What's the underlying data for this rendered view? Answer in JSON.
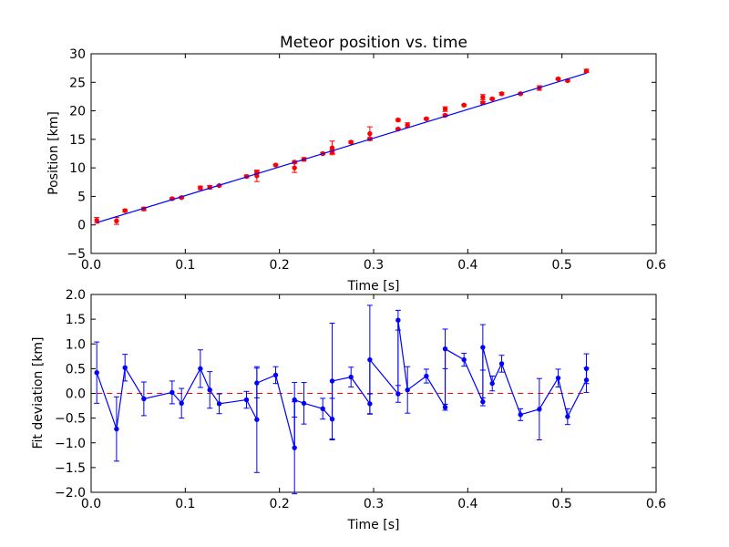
{
  "colors": {
    "points": "#ff0000",
    "fit": "#0000ff",
    "zero_line": "#ff0000",
    "background": "#ffffff"
  },
  "chart_data": [
    {
      "type": "scatter",
      "title": "Meteor position vs. time",
      "xlabel": "Time [s]",
      "ylabel": "Position [km]",
      "xlim": [
        0.0,
        0.6
      ],
      "ylim": [
        -5,
        30
      ],
      "xticks": [
        "0.0",
        "0.1",
        "0.2",
        "0.3",
        "0.4",
        "0.5",
        "0.6"
      ],
      "yticks": [
        "−5",
        "0",
        "5",
        "10",
        "15",
        "20",
        "25",
        "30"
      ],
      "grid": false,
      "series": [
        {
          "kind": "errorbar-points",
          "color": "#ff0000",
          "points": [
            {
              "x": 0.006,
              "y": 0.8,
              "err": 0.5
            },
            {
              "x": 0.027,
              "y": 0.7,
              "err": 0.6
            },
            {
              "x": 0.036,
              "y": 2.5,
              "err": 0.2
            },
            {
              "x": 0.056,
              "y": 2.8,
              "err": 0.3
            },
            {
              "x": 0.086,
              "y": 4.6,
              "err": 0.15
            },
            {
              "x": 0.096,
              "y": 4.8,
              "err": 0.15
            },
            {
              "x": 0.116,
              "y": 6.5,
              "err": 0.3
            },
            {
              "x": 0.126,
              "y": 6.6,
              "err": 0.3
            },
            {
              "x": 0.136,
              "y": 6.9,
              "err": 0.1
            },
            {
              "x": 0.165,
              "y": 8.5,
              "err": 0.25
            },
            {
              "x": 0.176,
              "y": 8.6,
              "err": 1.0
            },
            {
              "x": 0.176,
              "y": 9.2,
              "err": 0.2
            },
            {
              "x": 0.196,
              "y": 10.5,
              "err": 0.15
            },
            {
              "x": 0.216,
              "y": 10.0,
              "err": 0.8
            },
            {
              "x": 0.216,
              "y": 11.0,
              "err": 0.2
            },
            {
              "x": 0.226,
              "y": 11.5,
              "err": 0.3
            },
            {
              "x": 0.246,
              "y": 12.5,
              "err": 0.2
            },
            {
              "x": 0.256,
              "y": 12.8,
              "err": 0.3
            },
            {
              "x": 0.256,
              "y": 13.5,
              "err": 1.2
            },
            {
              "x": 0.276,
              "y": 14.5,
              "err": 0.2
            },
            {
              "x": 0.296,
              "y": 15.1,
              "err": 0.2
            },
            {
              "x": 0.296,
              "y": 16.0,
              "err": 1.2
            },
            {
              "x": 0.326,
              "y": 16.8,
              "err": 0.15
            },
            {
              "x": 0.326,
              "y": 18.4,
              "err": 0.2
            },
            {
              "x": 0.336,
              "y": 17.5,
              "err": 0.4
            },
            {
              "x": 0.356,
              "y": 18.6,
              "err": 0.15
            },
            {
              "x": 0.376,
              "y": 19.2,
              "err": 0.15
            },
            {
              "x": 0.376,
              "y": 20.3,
              "err": 0.4
            },
            {
              "x": 0.396,
              "y": 21.0,
              "err": 0.15
            },
            {
              "x": 0.416,
              "y": 21.4,
              "err": 0.2
            },
            {
              "x": 0.416,
              "y": 22.4,
              "err": 0.45
            },
            {
              "x": 0.426,
              "y": 22.1,
              "err": 0.15
            },
            {
              "x": 0.436,
              "y": 23.0,
              "err": 0.2
            },
            {
              "x": 0.456,
              "y": 23.0,
              "err": 0.15
            },
            {
              "x": 0.476,
              "y": 24.0,
              "err": 0.4
            },
            {
              "x": 0.496,
              "y": 25.6,
              "err": 0.15
            },
            {
              "x": 0.506,
              "y": 25.3,
              "err": 0.15
            },
            {
              "x": 0.526,
              "y": 27.0,
              "err": 0.3
            }
          ]
        },
        {
          "kind": "fit-line",
          "color": "#0000ff",
          "x": [
            0.006,
            0.526
          ],
          "y": [
            0.4,
            26.6
          ]
        }
      ]
    },
    {
      "type": "line",
      "xlabel": "Time [s]",
      "ylabel": "Fit deviation [km]",
      "xlim": [
        0.0,
        0.6
      ],
      "ylim": [
        -2.0,
        2.0
      ],
      "xticks": [
        "0.0",
        "0.1",
        "0.2",
        "0.3",
        "0.4",
        "0.5",
        "0.6"
      ],
      "yticks": [
        "−2.0",
        "−1.5",
        "−1.0",
        "−0.5",
        "0.0",
        "0.5",
        "1.0",
        "1.5",
        "2.0"
      ],
      "grid": false,
      "zero_line": {
        "y": 0.0,
        "color": "#ff0000",
        "style": "dashed"
      },
      "series": [
        {
          "kind": "errorbar-line",
          "color": "#0000ff",
          "points": [
            {
              "x": 0.006,
              "y": 0.42,
              "err": 0.62
            },
            {
              "x": 0.027,
              "y": -0.72,
              "err": 0.65
            },
            {
              "x": 0.036,
              "y": 0.52,
              "err": 0.27
            },
            {
              "x": 0.056,
              "y": -0.11,
              "err": 0.34
            },
            {
              "x": 0.086,
              "y": 0.02,
              "err": 0.23
            },
            {
              "x": 0.096,
              "y": -0.2,
              "err": 0.3
            },
            {
              "x": 0.116,
              "y": 0.5,
              "err": 0.38
            },
            {
              "x": 0.126,
              "y": 0.07,
              "err": 0.37
            },
            {
              "x": 0.136,
              "y": -0.21,
              "err": 0.2
            },
            {
              "x": 0.165,
              "y": -0.13,
              "err": 0.17
            },
            {
              "x": 0.176,
              "y": -0.53,
              "err": 1.07
            },
            {
              "x": 0.176,
              "y": 0.21,
              "err": 0.3
            },
            {
              "x": 0.196,
              "y": 0.37,
              "err": 0.17
            },
            {
              "x": 0.216,
              "y": -1.1,
              "err": 0.93
            },
            {
              "x": 0.216,
              "y": -0.13,
              "err": 0.35
            },
            {
              "x": 0.226,
              "y": -0.2,
              "err": 0.42
            },
            {
              "x": 0.246,
              "y": -0.31,
              "err": 0.21
            },
            {
              "x": 0.256,
              "y": -0.52,
              "err": 0.42
            },
            {
              "x": 0.256,
              "y": 0.25,
              "err": 1.17
            },
            {
              "x": 0.276,
              "y": 0.33,
              "err": 0.2
            },
            {
              "x": 0.296,
              "y": -0.21,
              "err": 0.2
            },
            {
              "x": 0.296,
              "y": 0.68,
              "err": 1.1
            },
            {
              "x": 0.326,
              "y": -0.01,
              "err": 0.17
            },
            {
              "x": 0.326,
              "y": 1.48,
              "err": 0.2
            },
            {
              "x": 0.336,
              "y": 0.07,
              "err": 0.47
            },
            {
              "x": 0.356,
              "y": 0.35,
              "err": 0.14
            },
            {
              "x": 0.376,
              "y": -0.28,
              "err": 0.06
            },
            {
              "x": 0.376,
              "y": 0.9,
              "err": 0.4
            },
            {
              "x": 0.396,
              "y": 0.68,
              "err": 0.13
            },
            {
              "x": 0.416,
              "y": -0.17,
              "err": 0.08
            },
            {
              "x": 0.416,
              "y": 0.93,
              "err": 0.46
            },
            {
              "x": 0.426,
              "y": 0.2,
              "err": 0.15
            },
            {
              "x": 0.436,
              "y": 0.6,
              "err": 0.17
            },
            {
              "x": 0.456,
              "y": -0.43,
              "err": 0.12
            },
            {
              "x": 0.476,
              "y": -0.32,
              "err": 0.62
            },
            {
              "x": 0.496,
              "y": 0.31,
              "err": 0.18
            },
            {
              "x": 0.506,
              "y": -0.47,
              "err": 0.16
            },
            {
              "x": 0.526,
              "y": 0.27,
              "err": 0.25
            },
            {
              "x": 0.526,
              "y": 0.5,
              "err": 0.3
            }
          ]
        }
      ]
    }
  ]
}
